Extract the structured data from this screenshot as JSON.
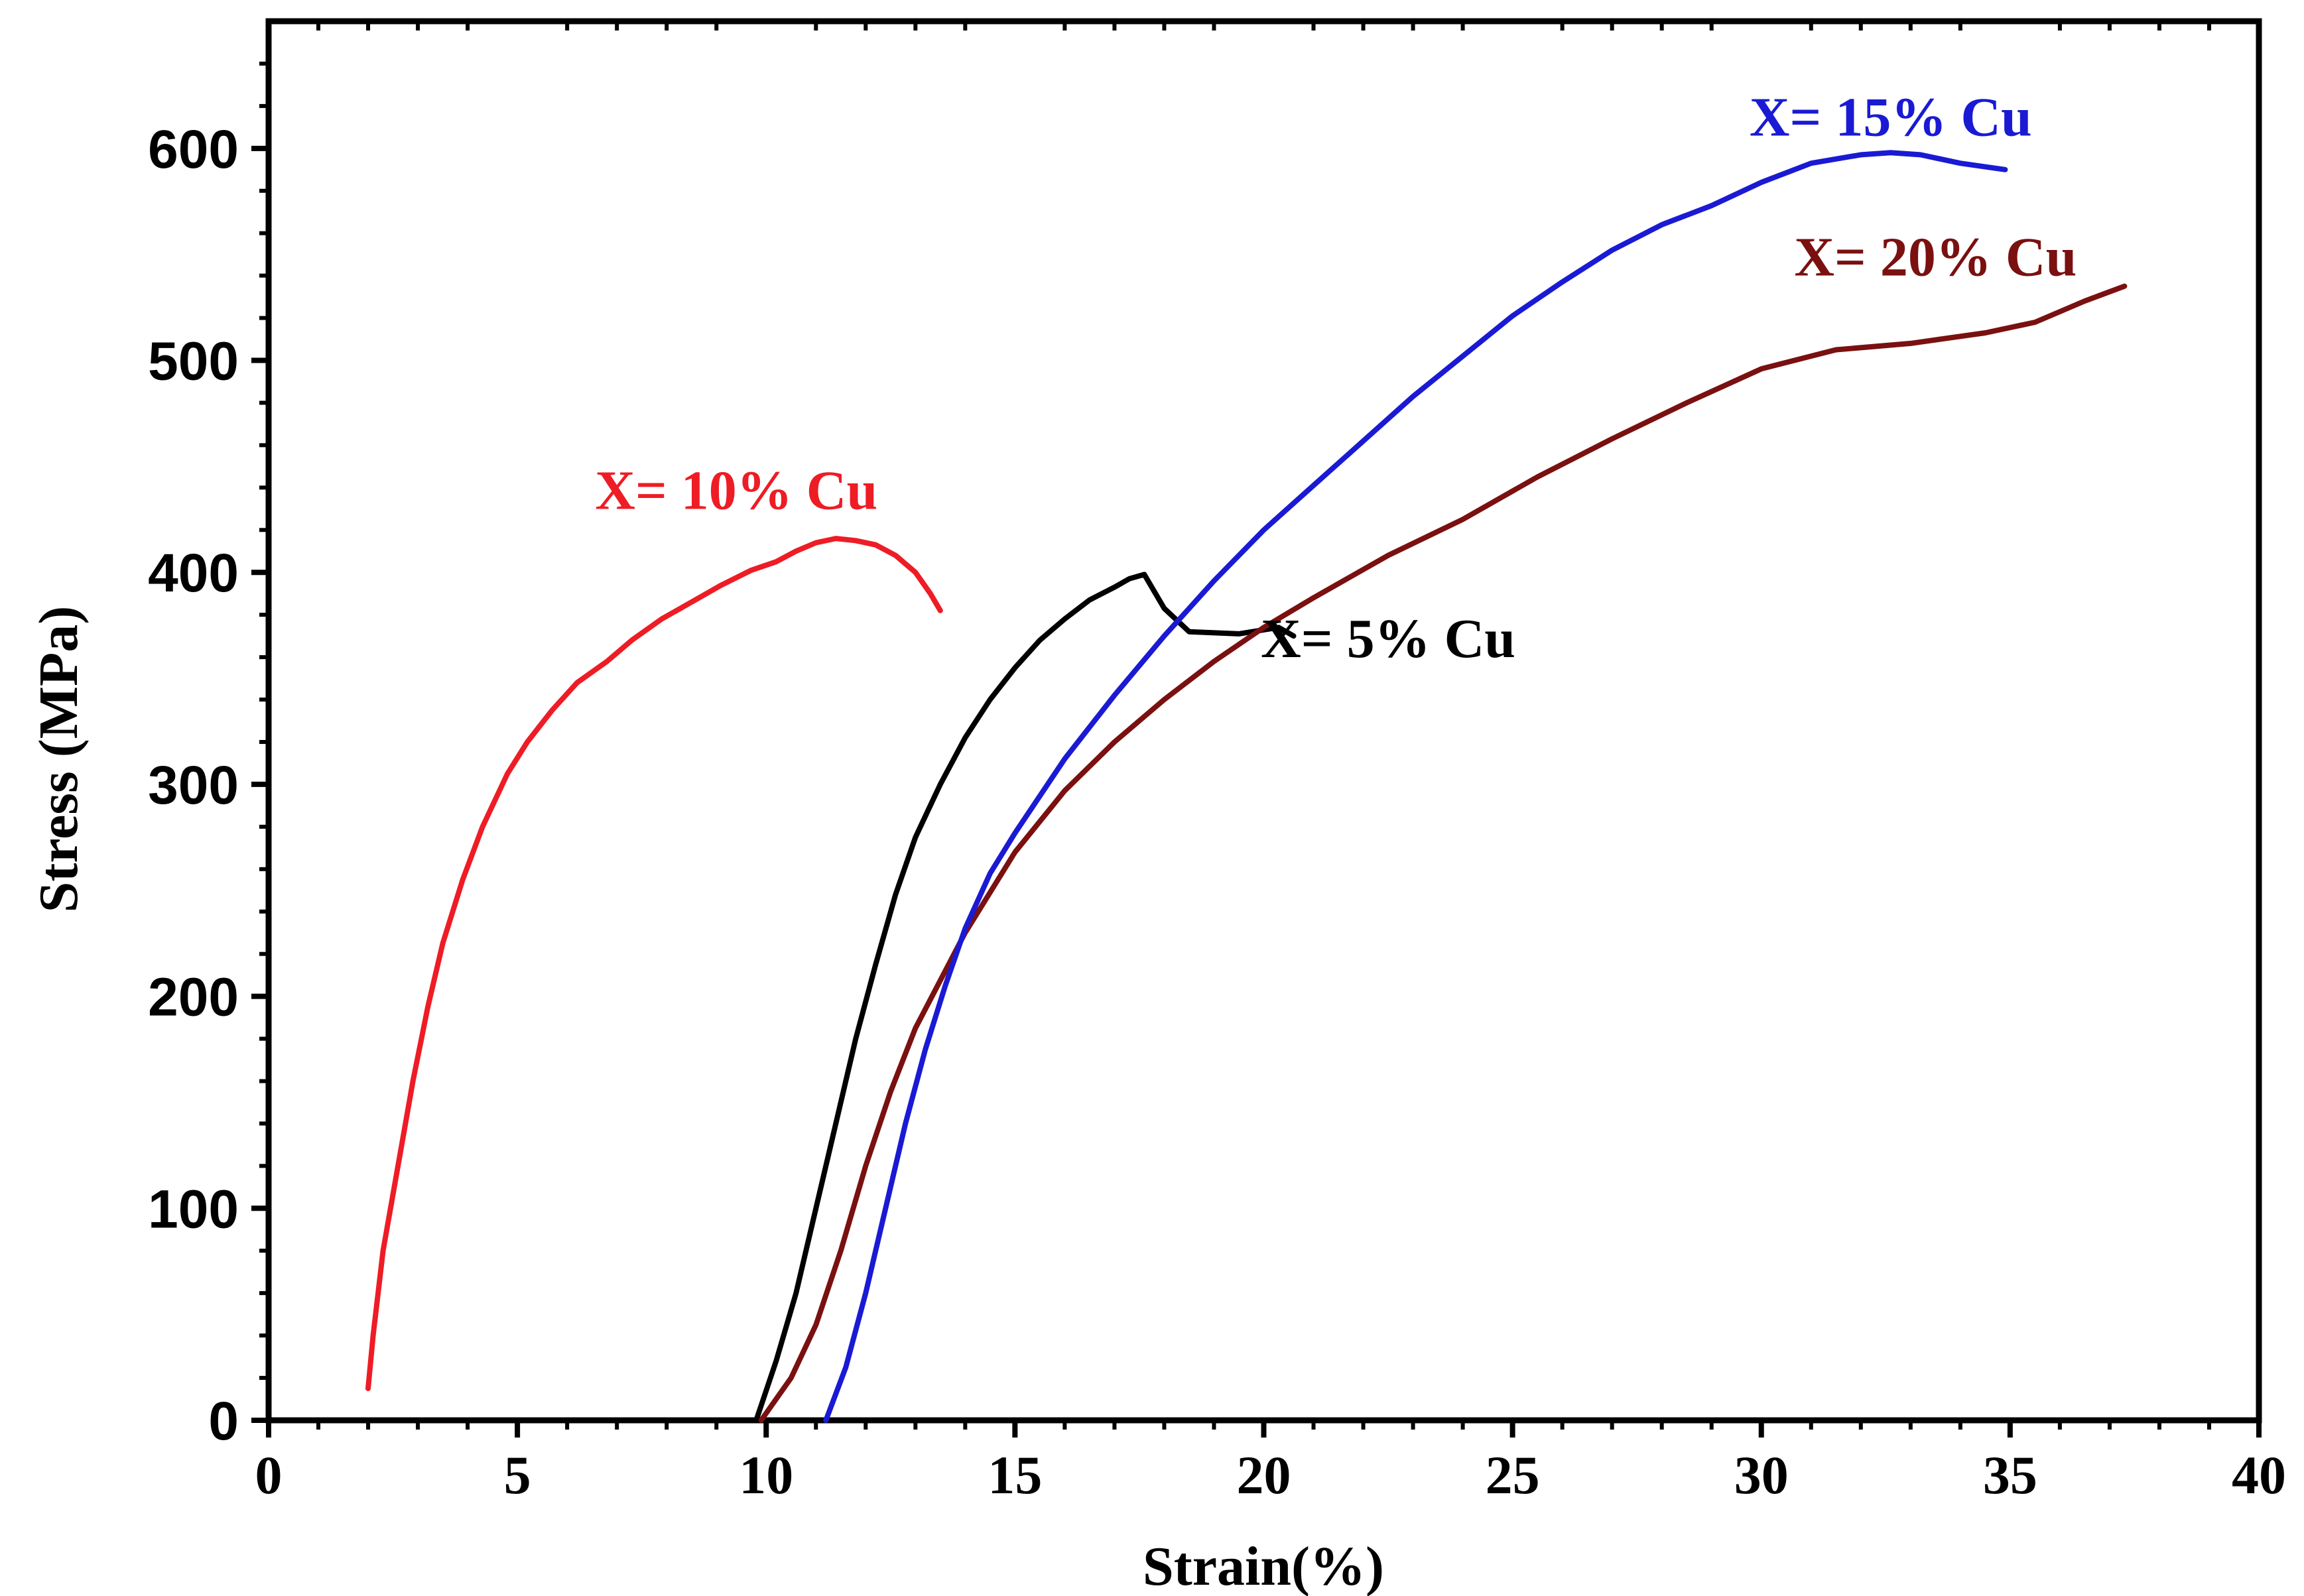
{
  "chart_data": {
    "type": "line",
    "title": "",
    "xlabel": "Strain(%)",
    "ylabel": "Stress (MPa)",
    "xlim": [
      0,
      40
    ],
    "ylim": [
      0,
      660
    ],
    "xticks": [
      "0",
      "5",
      "10",
      "15",
      "20",
      "25",
      "30",
      "35",
      "40"
    ],
    "yticks": [
      "0",
      "100",
      "200",
      "300",
      "400",
      "500",
      "600"
    ],
    "grid": false,
    "legend": "none",
    "series": [
      {
        "name": "X= 10% Cu",
        "color": "#ee1c25",
        "label_anchor": [
          9.4,
          430
        ],
        "x": [
          2.0,
          2.1,
          2.3,
          2.6,
          2.9,
          3.2,
          3.5,
          3.9,
          4.3,
          4.8,
          5.2,
          5.7,
          6.2,
          6.8,
          7.3,
          7.9,
          8.5,
          9.1,
          9.7,
          10.2,
          10.6,
          11.0,
          11.4,
          11.8,
          12.2,
          12.6,
          13.0,
          13.3,
          13.5
        ],
        "y": [
          15,
          40,
          80,
          120,
          160,
          195,
          225,
          255,
          280,
          305,
          320,
          335,
          348,
          358,
          368,
          378,
          386,
          394,
          401,
          405,
          410,
          414,
          416,
          415,
          413,
          408,
          400,
          390,
          382
        ]
      },
      {
        "name": "X= 5% Cu",
        "color": "#000000",
        "label_anchor": [
          22.5,
          360
        ],
        "x": [
          9.8,
          10.2,
          10.6,
          11.0,
          11.4,
          11.8,
          12.2,
          12.6,
          13.0,
          13.5,
          14.0,
          14.5,
          15.0,
          15.5,
          16.0,
          16.5,
          17.0,
          17.3,
          17.6,
          18.0,
          18.5,
          19.5,
          20.3,
          20.6
        ],
        "y": [
          0,
          28,
          60,
          100,
          140,
          180,
          215,
          248,
          275,
          300,
          322,
          340,
          355,
          368,
          378,
          387,
          393,
          397,
          399,
          383,
          372,
          371,
          374,
          370
        ]
      },
      {
        "name": "X= 20% Cu",
        "color": "#7a1010",
        "label_anchor": [
          33.5,
          540
        ],
        "x": [
          9.9,
          10.5,
          11.0,
          11.5,
          12.0,
          12.5,
          13.0,
          14.0,
          15.0,
          16.0,
          17.0,
          18.0,
          19.0,
          20.0,
          21.0,
          22.5,
          24.0,
          25.5,
          27.0,
          28.5,
          30.0,
          31.5,
          33.0,
          34.5,
          35.5,
          36.5,
          37.3
        ],
        "y": [
          0,
          20,
          45,
          80,
          120,
          155,
          185,
          230,
          268,
          297,
          320,
          340,
          358,
          374,
          388,
          408,
          425,
          445,
          463,
          480,
          496,
          505,
          508,
          513,
          518,
          528,
          535
        ]
      },
      {
        "name": "X= 15% Cu",
        "color": "#1a1ad4",
        "label_anchor": [
          32.6,
          606
        ],
        "x": [
          11.2,
          11.6,
          12.0,
          12.4,
          12.8,
          13.2,
          13.6,
          14.0,
          14.5,
          15.0,
          16.0,
          17.0,
          18.0,
          19.0,
          20.0,
          21.0,
          22.0,
          23.0,
          24.0,
          25.0,
          26.0,
          27.0,
          28.0,
          29.0,
          30.0,
          31.0,
          32.0,
          32.6,
          33.2,
          34.0,
          34.9
        ],
        "y": [
          0,
          25,
          60,
          100,
          140,
          175,
          205,
          232,
          258,
          277,
          312,
          342,
          370,
          396,
          420,
          441,
          462,
          483,
          502,
          521,
          537,
          552,
          564,
          573,
          584,
          593,
          597,
          598,
          597,
          593,
          590
        ]
      }
    ]
  }
}
